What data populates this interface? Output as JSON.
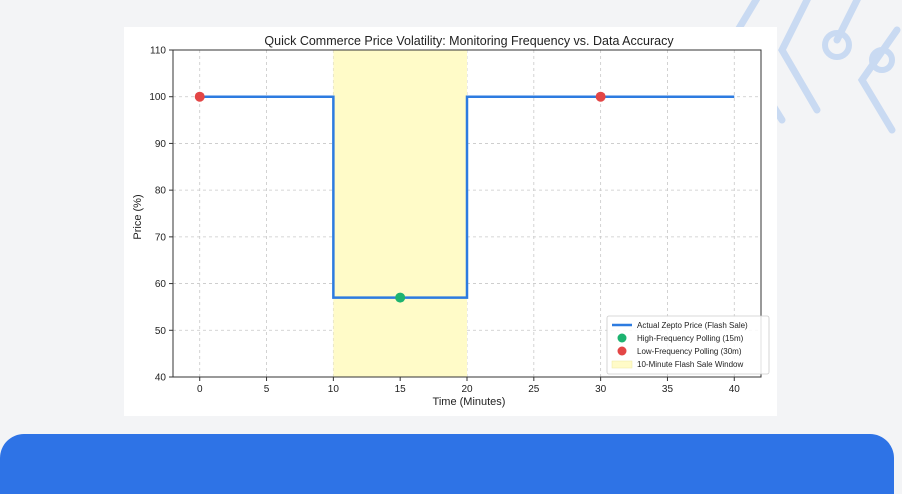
{
  "colors": {
    "background": "#f3f4f6",
    "panel": "#ffffff",
    "banner": "#2e73e6",
    "decor": "#c9daf2"
  },
  "chart_data": {
    "type": "line",
    "title": "Quick Commerce Price Volatility: Monitoring Frequency vs. Data Accuracy",
    "xlabel": "Time (Minutes)",
    "ylabel": "Price (%)",
    "xlim": [
      -2,
      42
    ],
    "ylim": [
      40,
      110
    ],
    "x_ticks": [
      0,
      5,
      10,
      15,
      20,
      25,
      30,
      35,
      40
    ],
    "y_ticks": [
      40,
      50,
      60,
      70,
      80,
      90,
      100,
      110
    ],
    "grid": true,
    "legend_position": "bottom-right",
    "series": [
      {
        "name": "Actual Zepto Price (Flash Sale)",
        "kind": "step-line",
        "color": "#2d7be0",
        "x": [
          0,
          10,
          10,
          20,
          20,
          40
        ],
        "y": [
          100,
          100,
          57,
          57,
          100,
          100
        ]
      },
      {
        "name": "High-Frequency Polling (15m)",
        "kind": "points",
        "color": "#1db370",
        "x": [
          15
        ],
        "y": [
          57
        ]
      },
      {
        "name": "Low-Frequency Polling (30m)",
        "kind": "points",
        "color": "#e34646",
        "x": [
          0,
          30
        ],
        "y": [
          100,
          100
        ]
      }
    ],
    "shaded_region": {
      "name": "10-Minute Flash Sale Window",
      "x_start": 10,
      "x_end": 20,
      "color": "#fffbc8"
    }
  }
}
